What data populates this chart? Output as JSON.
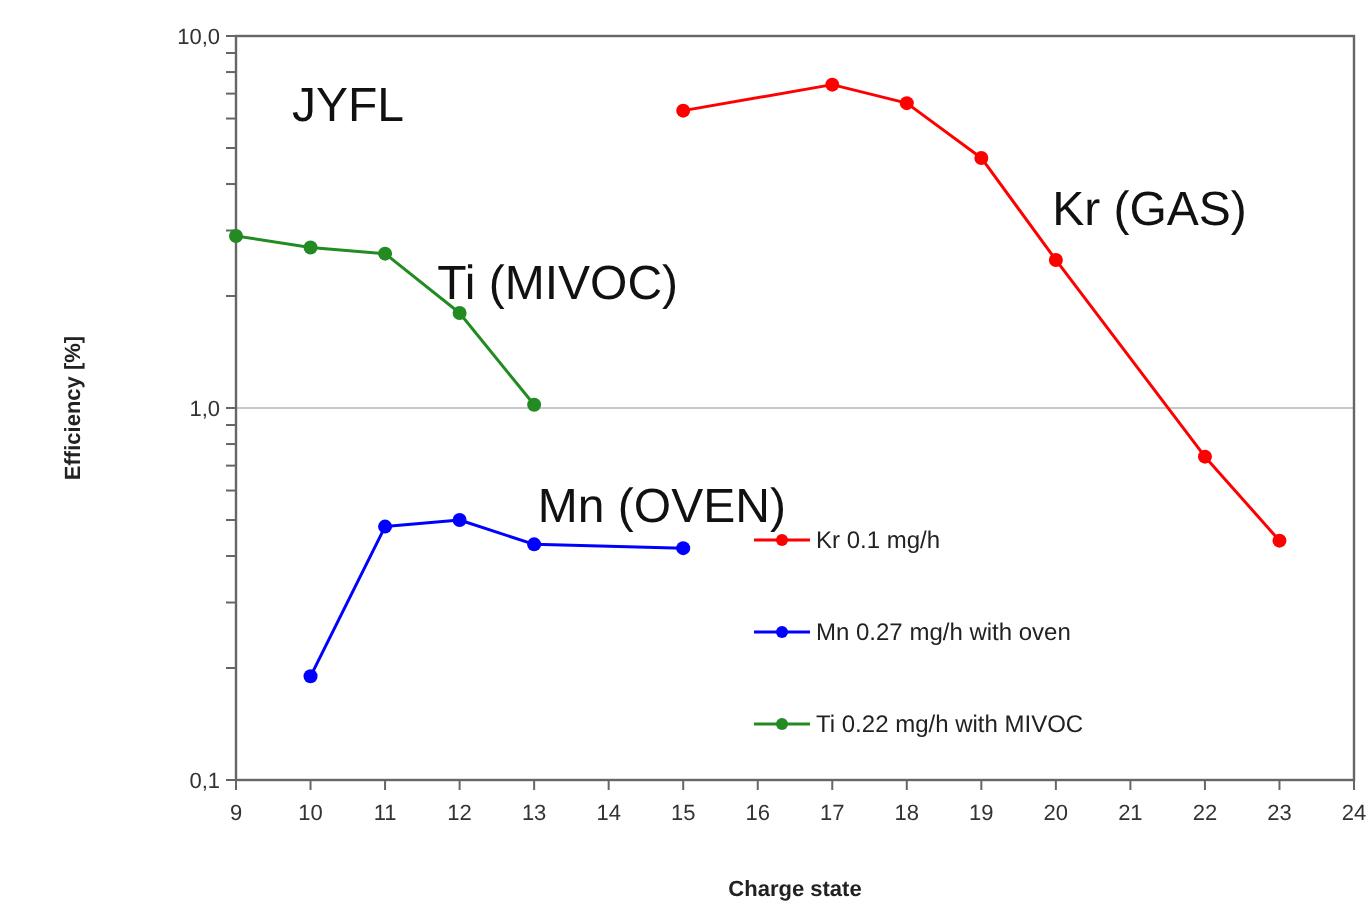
{
  "chart_data": {
    "type": "line",
    "xlabel": "Charge state",
    "ylabel": "Efficiency [%]",
    "annotations": [
      "JYFL",
      "Ti (MIVOC)",
      "Kr (GAS)",
      "Mn (OVEN)"
    ],
    "series": [
      {
        "name": "Kr 0.1 mg/h",
        "color": "#ff0000",
        "x": [
          15,
          17,
          18,
          19,
          20,
          22,
          23
        ],
        "values": [
          6.3,
          7.4,
          6.6,
          4.7,
          2.5,
          0.74,
          0.44
        ]
      },
      {
        "name": "Mn 0.27 mg/h with oven",
        "color": "#0000ff",
        "x": [
          10,
          11,
          12,
          13,
          15
        ],
        "values": [
          0.19,
          0.48,
          0.5,
          0.43,
          0.42
        ]
      },
      {
        "name": "Ti 0.22 mg/h with MIVOC",
        "color": "#228b22",
        "x": [
          9,
          10,
          11,
          12,
          13
        ],
        "values": [
          2.9,
          2.7,
          2.6,
          1.8,
          1.02
        ]
      }
    ],
    "xlim": [
      9,
      24
    ],
    "xticks": [
      9,
      10,
      11,
      12,
      13,
      14,
      15,
      16,
      17,
      18,
      19,
      20,
      21,
      22,
      23,
      24
    ],
    "ylim": [
      0.1,
      10
    ],
    "log": true,
    "yticks": [
      {
        "value": 0.1,
        "label": "0,1"
      },
      {
        "value": 0.2,
        "label": null
      },
      {
        "value": 0.3,
        "label": null
      },
      {
        "value": 0.4,
        "label": null
      },
      {
        "value": 0.5,
        "label": null
      },
      {
        "value": 0.6,
        "label": null
      },
      {
        "value": 0.7,
        "label": null
      },
      {
        "value": 0.8,
        "label": null
      },
      {
        "value": 0.9,
        "label": null
      },
      {
        "value": 1,
        "label": "1,0"
      },
      {
        "value": 2,
        "label": null
      },
      {
        "value": 3,
        "label": null
      },
      {
        "value": 4,
        "label": null
      },
      {
        "value": 5,
        "label": null
      },
      {
        "value": 6,
        "label": null
      },
      {
        "value": 7,
        "label": null
      },
      {
        "value": 8,
        "label": null
      },
      {
        "value": 9,
        "label": null
      },
      {
        "value": 10,
        "label": "10,0"
      }
    ],
    "grid": "y",
    "legend": "bottom right",
    "marker": "circle",
    "line_style": "solid"
  }
}
